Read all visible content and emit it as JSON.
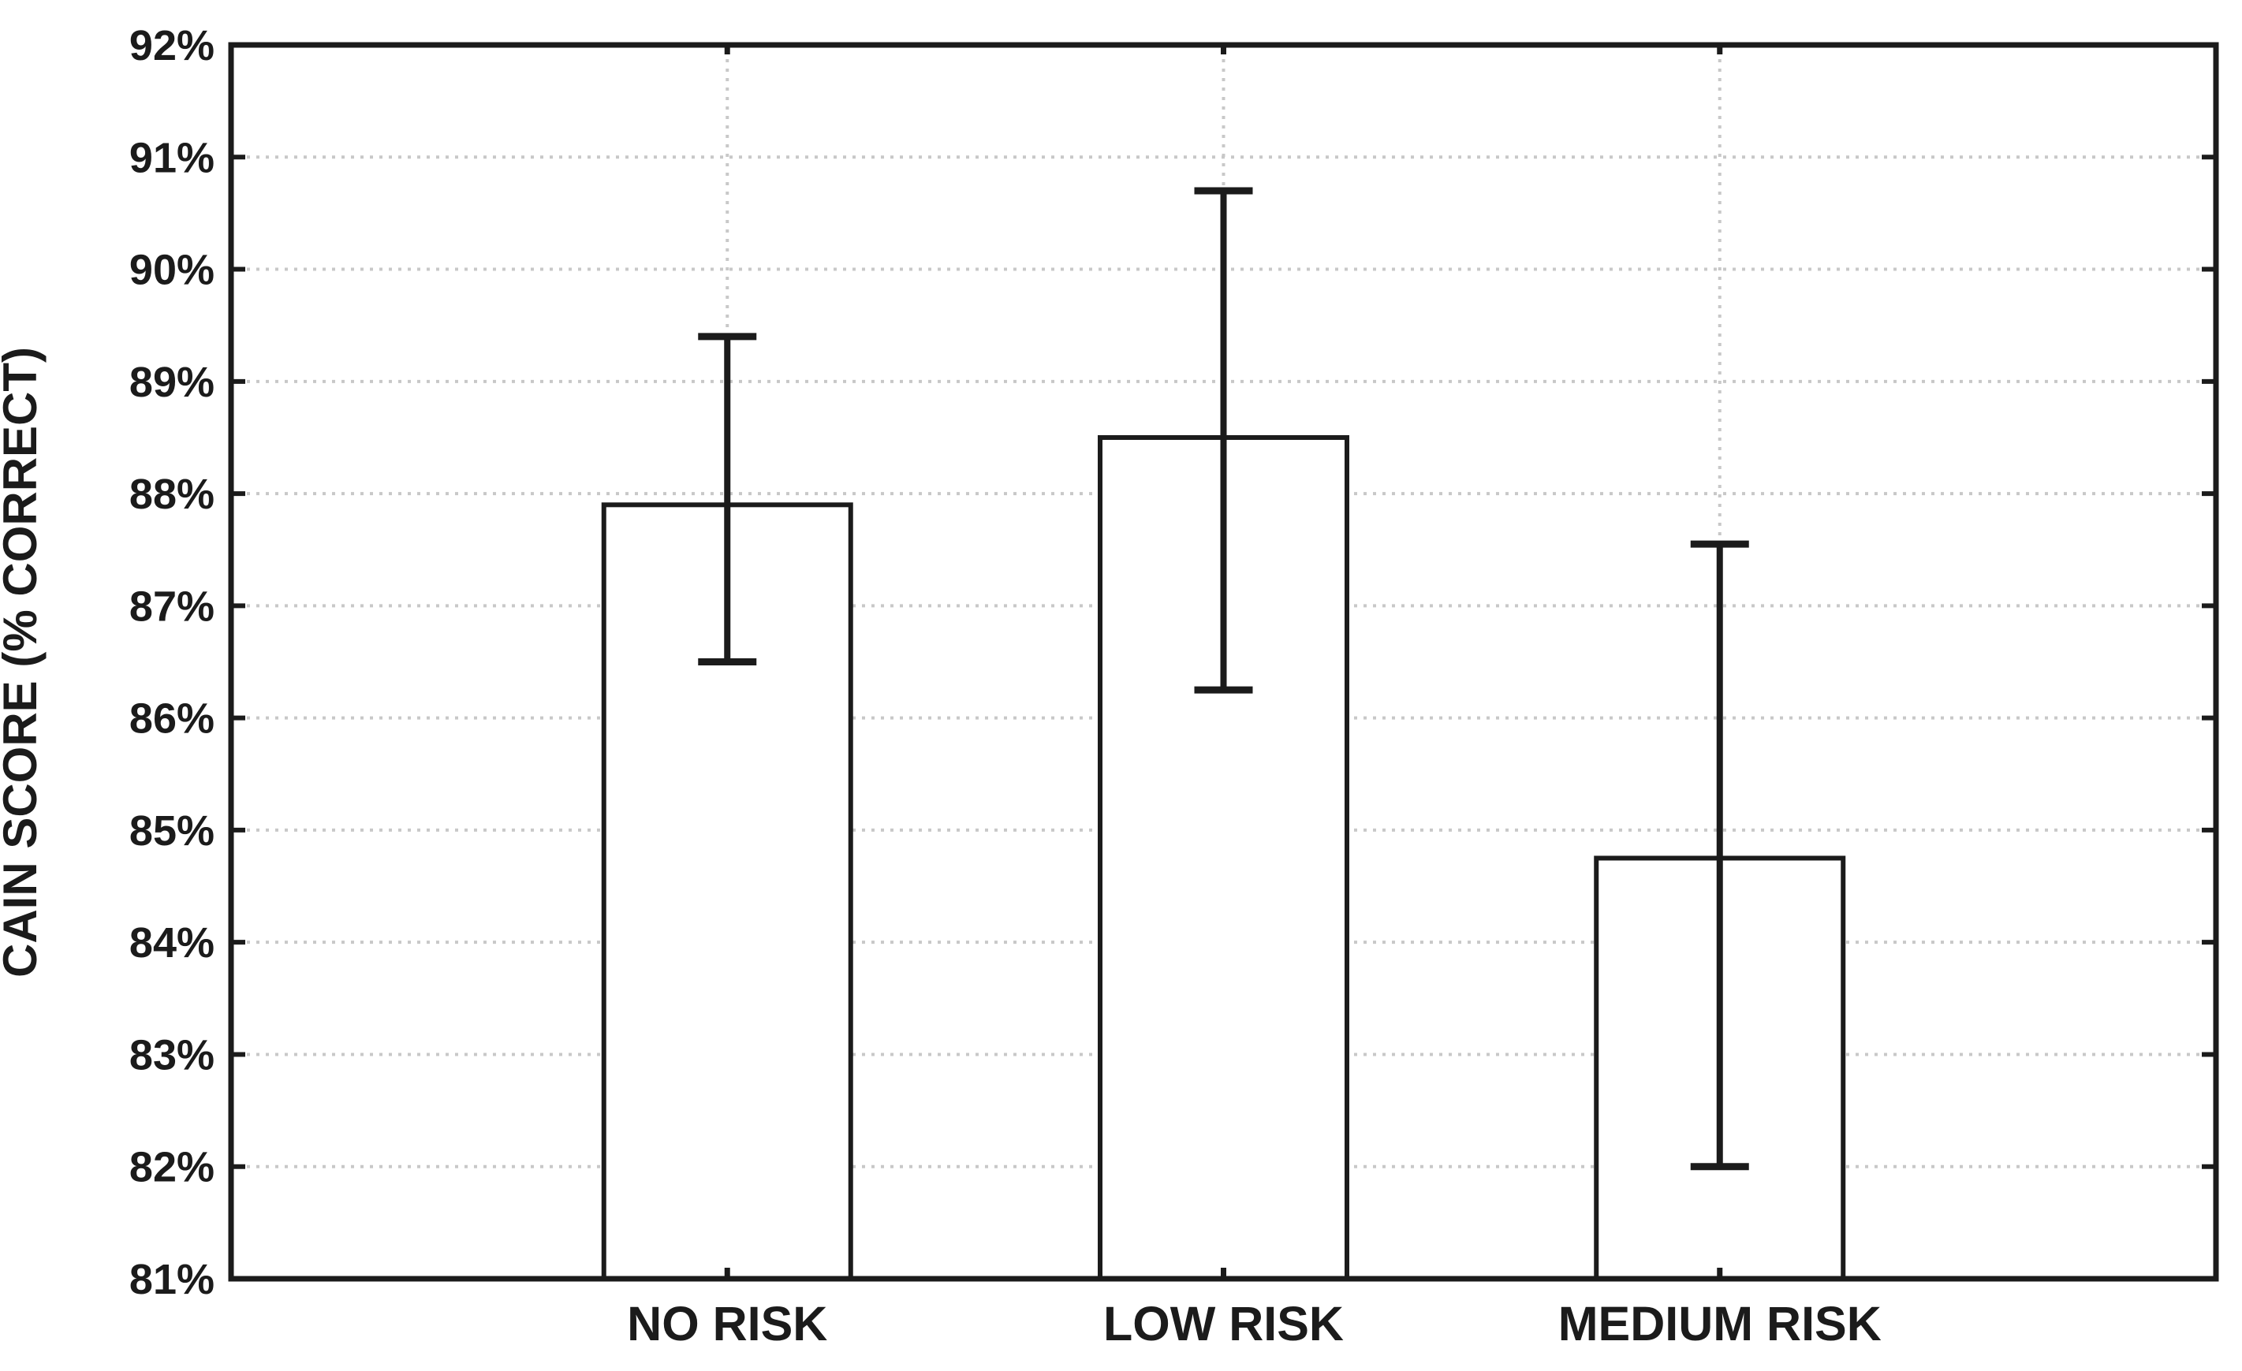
{
  "chart_data": {
    "type": "bar",
    "title": "",
    "categories": [
      "NO RISK",
      "LOW RISK",
      "MEDIUM RISK"
    ],
    "values": [
      87.9,
      88.5,
      84.75
    ],
    "error_low": [
      86.5,
      86.25,
      82.0
    ],
    "error_high": [
      89.4,
      90.7,
      87.55
    ],
    "xlabel": "",
    "ylabel": "CAIN SCORE (% CORRECT)",
    "ylim": [
      81,
      92
    ],
    "ytick_step": 1,
    "ytick_labels": [
      "81%",
      "82%",
      "83%",
      "84%",
      "85%",
      "86%",
      "87%",
      "88%",
      "89%",
      "90%",
      "91%",
      "92%"
    ],
    "grid": "dotted horizontal gridlines at each y tick; dotted vertical gridline at each category center",
    "legend": "none",
    "style": {
      "bar_fill": "#ffffff",
      "bar_border_color": "#1b1b1b",
      "error_bar_color": "#1b1b1b",
      "axis_color": "#1b1b1b",
      "gridline_color": "#c8c8c8",
      "background": "#ffffff"
    }
  }
}
